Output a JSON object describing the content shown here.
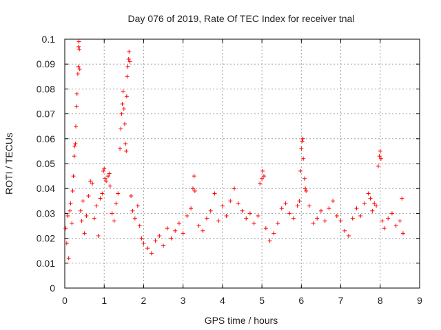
{
  "chart_data": {
    "type": "scatter",
    "title": "Day 076 of 2019, Rate Of TEC Index for receiver tnal",
    "xlabel": "GPS time / hours",
    "ylabel": "ROTI / TECUs",
    "xlim": [
      0,
      9
    ],
    "ylim": [
      0,
      0.1
    ],
    "xticks": [
      0,
      1,
      2,
      3,
      4,
      5,
      6,
      7,
      8,
      9
    ],
    "yticks": [
      0,
      0.01,
      0.02,
      0.03,
      0.04,
      0.05,
      0.06,
      0.07,
      0.08,
      0.09,
      0.1
    ],
    "ytick_labels": [
      "0",
      "0.01",
      "0.02",
      "0.03",
      "0.04",
      "0.05",
      "0.06",
      "0.07",
      "0.08",
      "0.09",
      "0.1"
    ],
    "grid": true,
    "marker": "+",
    "color": "#ff0000",
    "series": [
      {
        "name": "ROTI",
        "points": [
          [
            0.02,
            0.024
          ],
          [
            0.05,
            0.018
          ],
          [
            0.08,
            0.029
          ],
          [
            0.1,
            0.012
          ],
          [
            0.13,
            0.031
          ],
          [
            0.15,
            0.034
          ],
          [
            0.18,
            0.026
          ],
          [
            0.2,
            0.039
          ],
          [
            0.22,
            0.045
          ],
          [
            0.24,
            0.053
          ],
          [
            0.25,
            0.057
          ],
          [
            0.27,
            0.058
          ],
          [
            0.28,
            0.065
          ],
          [
            0.3,
            0.073
          ],
          [
            0.31,
            0.078
          ],
          [
            0.33,
            0.086
          ],
          [
            0.34,
            0.089
          ],
          [
            0.35,
            0.097
          ],
          [
            0.36,
            0.099
          ],
          [
            0.37,
            0.096
          ],
          [
            0.38,
            0.088
          ],
          [
            0.4,
            0.031
          ],
          [
            0.43,
            0.027
          ],
          [
            0.46,
            0.035
          ],
          [
            0.5,
            0.022
          ],
          [
            0.55,
            0.029
          ],
          [
            0.6,
            0.037
          ],
          [
            0.65,
            0.043
          ],
          [
            0.7,
            0.042
          ],
          [
            0.75,
            0.028
          ],
          [
            0.8,
            0.033
          ],
          [
            0.85,
            0.021
          ],
          [
            0.9,
            0.036
          ],
          [
            0.95,
            0.038
          ],
          [
            0.98,
            0.047
          ],
          [
            1.0,
            0.048
          ],
          [
            1.02,
            0.044
          ],
          [
            1.05,
            0.043
          ],
          [
            1.1,
            0.045
          ],
          [
            1.13,
            0.046
          ],
          [
            1.15,
            0.041
          ],
          [
            1.2,
            0.03
          ],
          [
            1.25,
            0.027
          ],
          [
            1.3,
            0.034
          ],
          [
            1.35,
            0.038
          ],
          [
            1.4,
            0.056
          ],
          [
            1.42,
            0.064
          ],
          [
            1.44,
            0.07
          ],
          [
            1.46,
            0.074
          ],
          [
            1.48,
            0.079
          ],
          [
            1.5,
            0.072
          ],
          [
            1.52,
            0.066
          ],
          [
            1.54,
            0.058
          ],
          [
            1.56,
            0.055
          ],
          [
            1.57,
            0.077
          ],
          [
            1.58,
            0.085
          ],
          [
            1.6,
            0.089
          ],
          [
            1.62,
            0.092
          ],
          [
            1.63,
            0.095
          ],
          [
            1.65,
            0.091
          ],
          [
            1.68,
            0.037
          ],
          [
            1.72,
            0.031
          ],
          [
            1.78,
            0.028
          ],
          [
            1.85,
            0.033
          ],
          [
            1.9,
            0.025
          ],
          [
            1.95,
            0.02
          ],
          [
            2.0,
            0.018
          ],
          [
            2.1,
            0.016
          ],
          [
            2.2,
            0.014
          ],
          [
            2.3,
            0.019
          ],
          [
            2.4,
            0.021
          ],
          [
            2.5,
            0.017
          ],
          [
            2.6,
            0.024
          ],
          [
            2.7,
            0.02
          ],
          [
            2.8,
            0.023
          ],
          [
            2.9,
            0.026
          ],
          [
            3.0,
            0.022
          ],
          [
            3.1,
            0.029
          ],
          [
            3.2,
            0.032
          ],
          [
            3.25,
            0.04
          ],
          [
            3.28,
            0.045
          ],
          [
            3.3,
            0.039
          ],
          [
            3.4,
            0.025
          ],
          [
            3.5,
            0.023
          ],
          [
            3.6,
            0.028
          ],
          [
            3.7,
            0.031
          ],
          [
            3.8,
            0.038
          ],
          [
            3.9,
            0.027
          ],
          [
            4.0,
            0.033
          ],
          [
            4.1,
            0.029
          ],
          [
            4.2,
            0.035
          ],
          [
            4.3,
            0.04
          ],
          [
            4.4,
            0.034
          ],
          [
            4.5,
            0.031
          ],
          [
            4.6,
            0.028
          ],
          [
            4.7,
            0.03
          ],
          [
            4.8,
            0.026
          ],
          [
            4.9,
            0.029
          ],
          [
            4.95,
            0.042
          ],
          [
            5.0,
            0.044
          ],
          [
            5.02,
            0.047
          ],
          [
            5.05,
            0.045
          ],
          [
            5.1,
            0.024
          ],
          [
            5.2,
            0.019
          ],
          [
            5.3,
            0.022
          ],
          [
            5.4,
            0.026
          ],
          [
            5.5,
            0.032
          ],
          [
            5.6,
            0.034
          ],
          [
            5.7,
            0.03
          ],
          [
            5.8,
            0.028
          ],
          [
            5.9,
            0.033
          ],
          [
            5.95,
            0.035
          ],
          [
            5.98,
            0.047
          ],
          [
            6.0,
            0.056
          ],
          [
            6.02,
            0.059
          ],
          [
            6.04,
            0.06
          ],
          [
            6.05,
            0.052
          ],
          [
            6.08,
            0.044
          ],
          [
            6.1,
            0.04
          ],
          [
            6.12,
            0.039
          ],
          [
            6.2,
            0.033
          ],
          [
            6.3,
            0.026
          ],
          [
            6.4,
            0.028
          ],
          [
            6.5,
            0.031
          ],
          [
            6.6,
            0.027
          ],
          [
            6.7,
            0.032
          ],
          [
            6.8,
            0.035
          ],
          [
            6.9,
            0.029
          ],
          [
            7.0,
            0.027
          ],
          [
            7.1,
            0.023
          ],
          [
            7.2,
            0.021
          ],
          [
            7.3,
            0.028
          ],
          [
            7.4,
            0.032
          ],
          [
            7.5,
            0.029
          ],
          [
            7.6,
            0.034
          ],
          [
            7.7,
            0.038
          ],
          [
            7.75,
            0.036
          ],
          [
            7.8,
            0.031
          ],
          [
            7.85,
            0.034
          ],
          [
            7.9,
            0.033
          ],
          [
            7.95,
            0.049
          ],
          [
            7.98,
            0.053
          ],
          [
            8.0,
            0.055
          ],
          [
            8.02,
            0.052
          ],
          [
            8.05,
            0.027
          ],
          [
            8.1,
            0.024
          ],
          [
            8.2,
            0.028
          ],
          [
            8.3,
            0.03
          ],
          [
            8.4,
            0.025
          ],
          [
            8.5,
            0.027
          ],
          [
            8.55,
            0.036
          ],
          [
            8.58,
            0.022
          ]
        ]
      }
    ]
  }
}
